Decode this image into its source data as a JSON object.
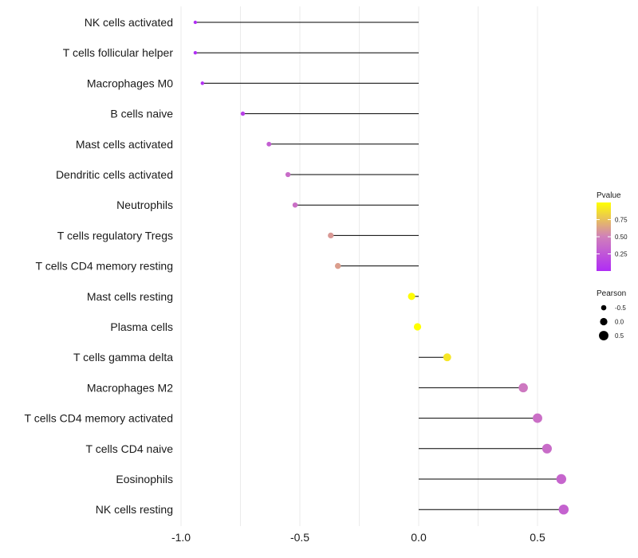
{
  "chart_data": {
    "type": "lollipop",
    "title": "",
    "xlabel": "",
    "ylabel": "",
    "xlim": [
      -1.0,
      0.6
    ],
    "xticks": [
      -1.0,
      -0.5,
      0.0,
      0.5
    ],
    "xtick_labels": [
      "-1.0",
      "-0.5",
      "0.0",
      "0.5"
    ],
    "grid": true,
    "categories": [
      "NK cells activated",
      "T cells follicular helper",
      "Macrophages M0",
      "B cells naive",
      "Mast cells activated",
      "Dendritic cells activated",
      "Neutrophils",
      "T cells regulatory  Tregs ",
      "T cells CD4 memory resting",
      "Mast cells resting",
      "Plasma cells",
      "T cells gamma delta",
      "Macrophages M2",
      "T cells CD4 memory activated",
      "T cells CD4 naive",
      "Eosinophils",
      "NK cells resting"
    ],
    "pearson": [
      -0.94,
      -0.94,
      -0.91,
      -0.74,
      -0.63,
      -0.55,
      -0.52,
      -0.37,
      -0.34,
      -0.03,
      -0.005,
      0.12,
      0.44,
      0.5,
      0.54,
      0.6,
      0.61
    ],
    "pvalue": [
      0.01,
      0.01,
      0.03,
      0.12,
      0.3,
      0.38,
      0.4,
      0.6,
      0.62,
      0.99,
      1.0,
      0.9,
      0.45,
      0.4,
      0.38,
      0.34,
      0.32
    ],
    "legend": {
      "position": "right",
      "pvalue": {
        "title": "Pvalue",
        "ticks": [
          0.25,
          0.5,
          0.75
        ],
        "tick_labels": [
          "0.25",
          "0.50",
          "0.75"
        ],
        "range": [
          0.0,
          1.0
        ],
        "color_low": "#b02cf5",
        "color_mid": "#d080ba",
        "color_high": "#ffff00"
      },
      "pearson": {
        "title": "Pearson",
        "values": [
          -0.5,
          0.0,
          0.5
        ],
        "labels": [
          "-0.5",
          "0.0",
          "0.5"
        ]
      }
    }
  }
}
